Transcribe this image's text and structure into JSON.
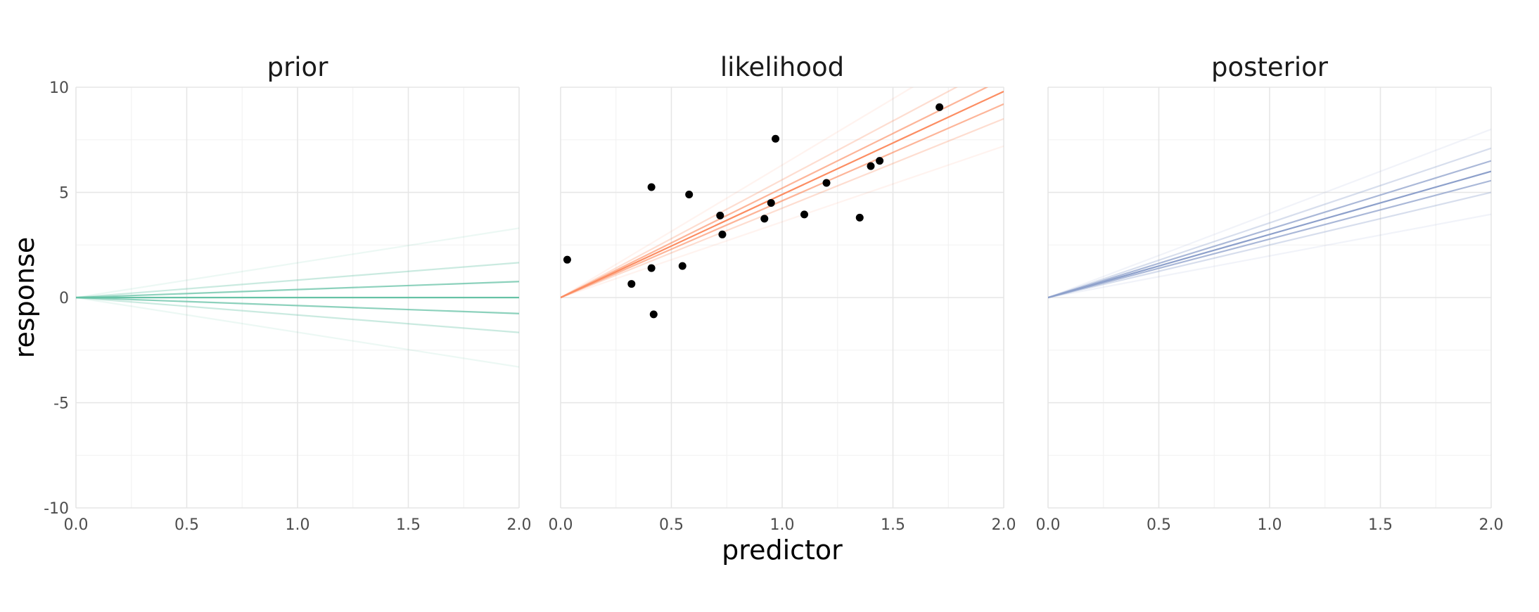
{
  "chart_data": {
    "type": "line",
    "xlabel": "predictor",
    "ylabel": "response",
    "xlim": [
      0,
      2
    ],
    "ylim": [
      -10,
      10
    ],
    "x_ticks": [
      "0.0",
      "0.5",
      "1.0",
      "1.5",
      "2.0"
    ],
    "y_ticks": [
      "10",
      "5",
      "0",
      "-5",
      "-10"
    ],
    "grid": true,
    "legend": "none",
    "panels": [
      {
        "title": "prior",
        "color": "#66c2a5",
        "lines": [
          {
            "slope": 1.65,
            "opacity": 0.12
          },
          {
            "slope": 0.83,
            "opacity": 0.35
          },
          {
            "slope": 0.38,
            "opacity": 0.75
          },
          {
            "slope": 0.0,
            "opacity": 1.0
          },
          {
            "slope": -0.38,
            "opacity": 0.75
          },
          {
            "slope": -0.83,
            "opacity": 0.35
          },
          {
            "slope": -1.65,
            "opacity": 0.12
          }
        ],
        "points": []
      },
      {
        "title": "likelihood",
        "color": "#fc8d62",
        "lines": [
          {
            "slope": 6.3,
            "opacity": 0.1
          },
          {
            "slope": 5.6,
            "opacity": 0.3
          },
          {
            "slope": 5.2,
            "opacity": 0.65
          },
          {
            "slope": 4.9,
            "opacity": 1.0
          },
          {
            "slope": 4.6,
            "opacity": 0.65
          },
          {
            "slope": 4.25,
            "opacity": 0.3
          },
          {
            "slope": 3.6,
            "opacity": 0.1
          }
        ],
        "points": [
          {
            "x": 0.03,
            "y": 1.8
          },
          {
            "x": 0.32,
            "y": 0.65
          },
          {
            "x": 0.41,
            "y": 5.25
          },
          {
            "x": 0.41,
            "y": 1.4
          },
          {
            "x": 0.42,
            "y": -0.8
          },
          {
            "x": 0.55,
            "y": 1.5
          },
          {
            "x": 0.58,
            "y": 4.9
          },
          {
            "x": 0.72,
            "y": 3.9
          },
          {
            "x": 0.73,
            "y": 3.0
          },
          {
            "x": 0.92,
            "y": 3.75
          },
          {
            "x": 0.95,
            "y": 4.5
          },
          {
            "x": 0.97,
            "y": 7.55
          },
          {
            "x": 1.1,
            "y": 3.95
          },
          {
            "x": 1.2,
            "y": 5.45
          },
          {
            "x": 1.35,
            "y": 3.8
          },
          {
            "x": 1.4,
            "y": 6.25
          },
          {
            "x": 1.44,
            "y": 6.5
          },
          {
            "x": 1.71,
            "y": 9.05
          }
        ]
      },
      {
        "title": "posterior",
        "color": "#8da0cb",
        "lines": [
          {
            "slope": 4.0,
            "opacity": 0.12
          },
          {
            "slope": 3.55,
            "opacity": 0.35
          },
          {
            "slope": 3.25,
            "opacity": 0.75
          },
          {
            "slope": 3.0,
            "opacity": 1.0
          },
          {
            "slope": 2.78,
            "opacity": 0.75
          },
          {
            "slope": 2.5,
            "opacity": 0.35
          },
          {
            "slope": 1.98,
            "opacity": 0.12
          }
        ],
        "points": []
      }
    ]
  }
}
